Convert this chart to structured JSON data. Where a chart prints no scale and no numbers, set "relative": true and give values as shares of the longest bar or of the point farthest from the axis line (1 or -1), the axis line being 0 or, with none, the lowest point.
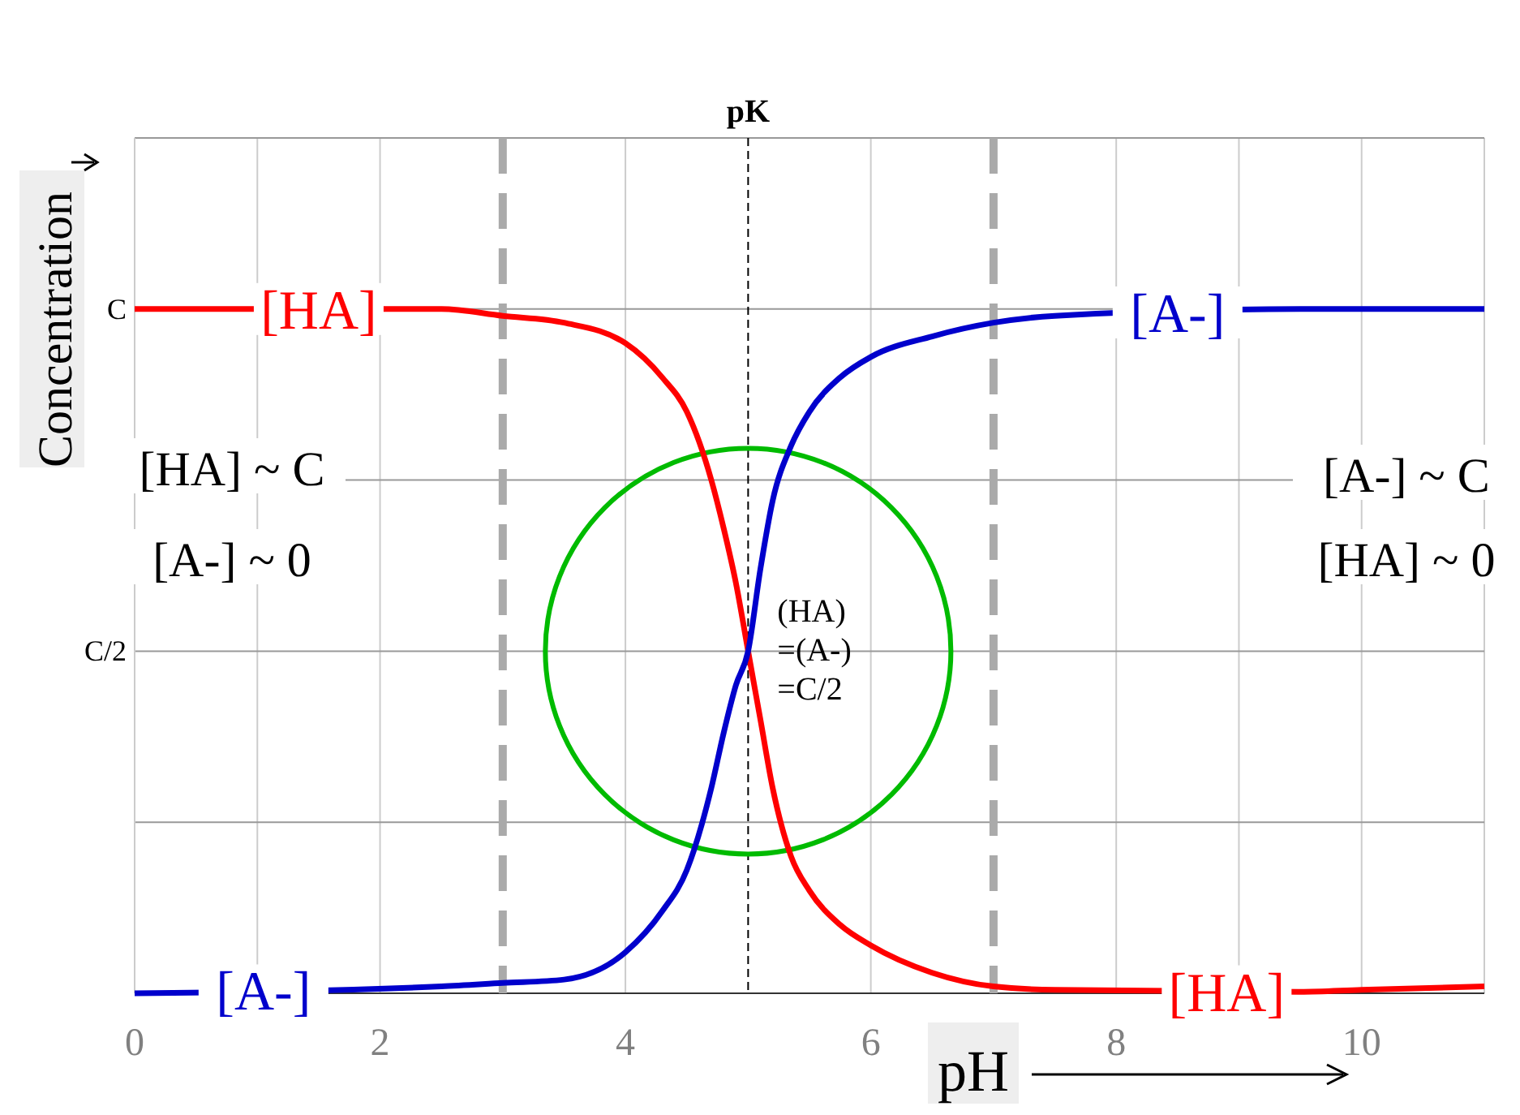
{
  "chart_data": {
    "type": "line",
    "xlabel": "pH",
    "ylabel": "Concentration",
    "relative": true,
    "x": [
      0,
      2.5,
      3,
      3.5,
      4,
      4.3,
      4.5,
      4.7,
      4.8,
      4.9,
      5,
      5.1,
      5.2,
      5.35,
      5.5,
      5.75,
      6,
      6.5,
      7,
      7.5,
      9.5,
      10,
      11
    ],
    "series": [
      {
        "name": "[HA]",
        "color": "#ff0000",
        "values": [
          1,
          1,
          0.99,
          0.98,
          0.95,
          0.9,
          0.85,
          0.75,
          0.68,
          0.6,
          0.5,
          0.4,
          0.3,
          0.2,
          0.15,
          0.1,
          0.07,
          0.03,
          0.01,
          0.005,
          0.002,
          0.005,
          0.01
        ]
      },
      {
        "name": "[A-]",
        "color": "#0000cc",
        "values": [
          0,
          0.01,
          0.015,
          0.02,
          0.06,
          0.12,
          0.18,
          0.3,
          0.38,
          0.45,
          0.5,
          0.62,
          0.72,
          0.8,
          0.85,
          0.9,
          0.93,
          0.96,
          0.98,
          0.99,
          1,
          1,
          1
        ]
      }
    ],
    "xlim": [
      0,
      11
    ],
    "xticks": [
      0,
      {
        "value": 1,
        "label": null
      },
      2,
      4,
      6,
      8,
      {
        "value": 9,
        "label": null
      },
      10,
      {
        "value": 11,
        "label": null
      }
    ],
    "grid": true,
    "marker": "none",
    "line_style": "solid",
    "ref_lines": [
      {
        "axis": "x",
        "value": 3,
        "label": null,
        "color": "#aaaaaa",
        "line_style": "dashed"
      },
      {
        "axis": "x",
        "value": 7,
        "label": null,
        "color": "#aaaaaa",
        "line_style": "dashed"
      },
      {
        "axis": "x",
        "value": 5,
        "label": "pK",
        "color": "#000000",
        "line_style": "dashed"
      }
    ],
    "annotations": [
      "C",
      "C/2",
      {
        "text": "(HA)\n=(A-)\n=C/2",
        "x": 5,
        "y": 0.5
      },
      "[HA] ~ C",
      "[A-] ~ 0",
      "[A-] ~ C",
      "[HA] ~ 0"
    ]
  }
}
